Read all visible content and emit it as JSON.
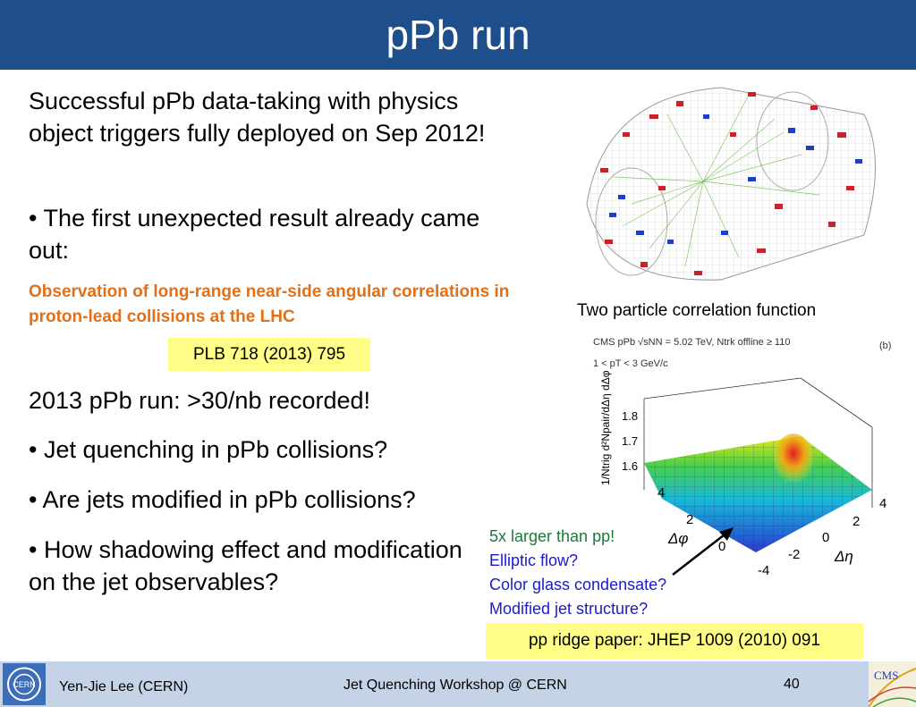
{
  "slide": {
    "title": "pPb run",
    "para1": "Successful pPb data-taking with physics object triggers fully deployed on Sep 2012!",
    "bullet1": "• The first unexpected result already came out:",
    "highlight": "Observation of long-range near-side angular correlations in proton-lead collisions at the LHC",
    "ref1": "PLB 718 (2013) 795",
    "para2": "2013 pPb run: >30/nb recorded!",
    "bullet2": "• Jet quenching in pPb collisions?",
    "bullet3": "• Are jets modified in pPb collisions?",
    "bullet4": "• How shadowing effect and modification on the jet observables?",
    "figure_caption": "Two particle correlation function",
    "plot_header_line1": "CMS pPb √sNN = 5.02 TeV, Ntrk offline ≥ 110",
    "plot_header_line2": "1 < pT < 3 GeV/c",
    "plot_panel_label": "(b)",
    "plot_zlabel": "1/Ntrig d²Npair/dΔη dΔφ",
    "plot_z_ticks": [
      "1.8",
      "1.7",
      "1.6"
    ],
    "plot_phi_ticks": [
      "4",
      "2",
      "0"
    ],
    "plot_eta_ticks": [
      "4",
      "2",
      "0",
      "-2",
      "-4"
    ],
    "plot_phi_label": "Δφ",
    "plot_eta_label": "Δη",
    "notes": [
      {
        "text": "5x larger than pp!",
        "color": "#1a7a3a"
      },
      {
        "text": "Elliptic flow?",
        "color": "#1a1acc"
      },
      {
        "text": "Color glass condensate?",
        "color": "#1a1acc"
      },
      {
        "text": "Modified jet structure?",
        "color": "#1a1acc"
      }
    ],
    "ref2": "pp ridge paper: JHEP 1009 (2010) 091"
  },
  "footer": {
    "author": "Yen-Jie Lee (CERN)",
    "event": "Jet Quenching Workshop @ CERN",
    "page": "40",
    "cern_logo_text": "CERN",
    "cms_logo_text": "CMS"
  },
  "colors": {
    "title_bar": "#1f4e8c",
    "highlight_text": "#e0701a",
    "ref_box": "#ffff88",
    "footer_bg": "#c5d3e6"
  }
}
